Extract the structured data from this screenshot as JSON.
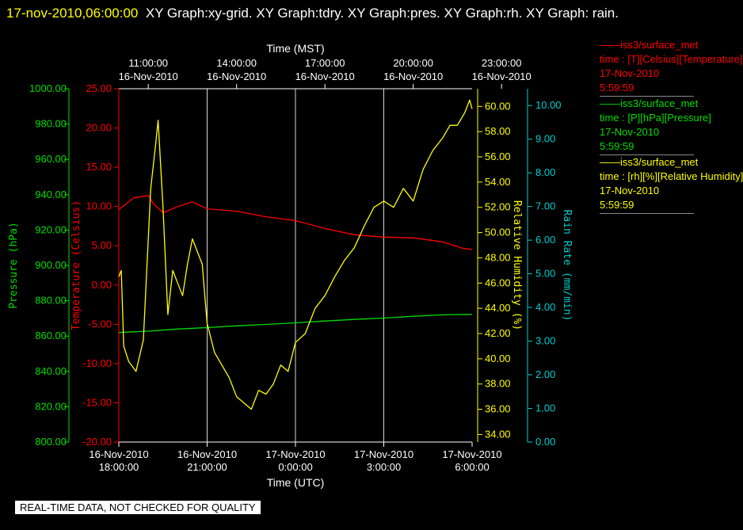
{
  "header": {
    "timestamp": "17-nov-2010,06:00:00",
    "graphs": "XY Graph:xy-grid.  XY Graph:tdry.  XY Graph:pres.  XY Graph:rh.  XY Graph: rain."
  },
  "legend": [
    {
      "series": "iss3/surface_met",
      "field": "time : [T][Celsius][Temperature]",
      "date": "17-Nov-2010",
      "time": "5:59:59",
      "color": "#ff0000"
    },
    {
      "series": "iss3/surface_met",
      "field": "time : [P][hPa][Pressure]",
      "date": "17-Nov-2010",
      "time": "5:59:59",
      "color": "#00dd00"
    },
    {
      "series": "iss3/surface_met",
      "field": "time : [rh][%][Relative Humidity]",
      "date": "17-Nov-2010",
      "time": "5:59:59",
      "color": "#ffff00"
    }
  ],
  "quality_note": "REAL-TIME DATA, NOT CHECKED FOR QUALITY",
  "chart_data": {
    "type": "line",
    "x_top": {
      "label": "Time (MST)",
      "ticks": [
        {
          "time": "11:00:00",
          "date": "16-Nov-2010"
        },
        {
          "time": "14:00:00",
          "date": "16-Nov-2010"
        },
        {
          "time": "17:00:00",
          "date": "16-Nov-2010"
        },
        {
          "time": "20:00:00",
          "date": "16-Nov-2010"
        },
        {
          "time": "23:00:00",
          "date": "16-Nov-2010"
        }
      ]
    },
    "x_bottom": {
      "label": "Time (UTC)",
      "range": [
        "2010-11-16 18:00",
        "2010-11-17 06:00"
      ],
      "ticks": [
        {
          "date": "16-Nov-2010",
          "time": "18:00:00"
        },
        {
          "date": "16-Nov-2010",
          "time": "21:00:00"
        },
        {
          "date": "17-Nov-2010",
          "time": "0:00:00"
        },
        {
          "date": "17-Nov-2010",
          "time": "3:00:00"
        },
        {
          "date": "17-Nov-2010",
          "time": "6:00:00"
        }
      ]
    },
    "grid": "vertical",
    "axes": {
      "pressure": {
        "label": "Pressure (hPa)",
        "color": "#00dd00",
        "ylim": [
          800,
          1000
        ],
        "ticks": [
          "800.00",
          "820.00",
          "840.00",
          "860.00",
          "880.00",
          "900.00",
          "920.00",
          "940.00",
          "960.00",
          "980.00",
          "1000.00"
        ]
      },
      "temperature": {
        "label": "Temperature (Celsius)",
        "color": "#ff0000",
        "ylim": [
          -20,
          25
        ],
        "ticks": [
          "-20.00",
          "-15.00",
          "-10.00",
          "-5.00",
          "0.00",
          "5.00",
          "10.00",
          "15.00",
          "20.00",
          "25.00"
        ]
      },
      "humidity": {
        "label": "Relative Humidity (%)",
        "color": "#ffff00",
        "ylim": [
          33.4,
          61.4
        ],
        "ticks": [
          "34.00",
          "36.00",
          "38.00",
          "40.00",
          "42.00",
          "44.00",
          "46.00",
          "48.00",
          "50.00",
          "52.00",
          "54.00",
          "56.00",
          "58.00",
          "60.00"
        ]
      },
      "rain": {
        "label": "Rain Rate (mm/min)",
        "color": "#00cccc",
        "ylim": [
          0,
          10.5
        ],
        "ticks": [
          "0.00",
          "1.00",
          "2.00",
          "3.00",
          "4.00",
          "5.00",
          "6.00",
          "7.00",
          "8.00",
          "9.00",
          "10.00"
        ]
      }
    },
    "series": [
      {
        "axis": "temperature",
        "color": "#ff0000",
        "x": [
          "2010-11-16 18:00",
          "2010-11-16 18:30",
          "2010-11-16 19:00",
          "2010-11-16 19:10",
          "2010-11-16 19:30",
          "2010-11-16 20:00",
          "2010-11-16 20:30",
          "2010-11-16 21:00",
          "2010-11-16 22:00",
          "2010-11-16 23:00",
          "2010-11-17 00:00",
          "2010-11-17 01:00",
          "2010-11-17 02:00",
          "2010-11-17 03:00",
          "2010-11-17 04:00",
          "2010-11-17 05:00",
          "2010-11-17 05:40",
          "2010-11-17 06:00"
        ],
        "values": [
          9.6,
          11.1,
          11.4,
          10.4,
          9.2,
          10.0,
          10.6,
          9.7,
          9.4,
          8.7,
          8.2,
          7.2,
          6.4,
          6.1,
          6.0,
          5.5,
          4.7,
          4.5
        ]
      },
      {
        "axis": "pressure",
        "color": "#00dd00",
        "x": [
          "2010-11-16 18:00",
          "2010-11-16 19:00",
          "2010-11-16 20:00",
          "2010-11-16 21:00",
          "2010-11-16 22:00",
          "2010-11-16 23:00",
          "2010-11-17 00:00",
          "2010-11-17 01:00",
          "2010-11-17 02:00",
          "2010-11-17 03:00",
          "2010-11-17 04:00",
          "2010-11-17 05:00",
          "2010-11-17 06:00"
        ],
        "values": [
          862.0,
          862.8,
          864.0,
          864.8,
          865.8,
          866.6,
          867.5,
          868.5,
          869.4,
          870.2,
          871.2,
          872.0,
          872.3
        ]
      },
      {
        "axis": "humidity",
        "color": "#ffff00",
        "x": [
          "2010-11-16 18:00",
          "2010-11-16 18:05",
          "2010-11-16 18:10",
          "2010-11-16 18:20",
          "2010-11-16 18:35",
          "2010-11-16 18:50",
          "2010-11-16 19:05",
          "2010-11-16 19:15",
          "2010-11-16 19:20",
          "2010-11-16 19:30",
          "2010-11-16 19:40",
          "2010-11-16 19:50",
          "2010-11-16 20:00",
          "2010-11-16 20:10",
          "2010-11-16 20:20",
          "2010-11-16 20:30",
          "2010-11-16 20:40",
          "2010-11-16 20:50",
          "2010-11-16 21:00",
          "2010-11-16 21:15",
          "2010-11-16 21:30",
          "2010-11-16 21:45",
          "2010-11-16 22:00",
          "2010-11-16 22:15",
          "2010-11-16 22:30",
          "2010-11-16 22:45",
          "2010-11-16 23:00",
          "2010-11-16 23:15",
          "2010-11-16 23:30",
          "2010-11-16 23:45",
          "2010-11-17 00:00",
          "2010-11-17 00:20",
          "2010-11-17 00:40",
          "2010-11-17 01:00",
          "2010-11-17 01:20",
          "2010-11-17 01:40",
          "2010-11-17 02:00",
          "2010-11-17 02:20",
          "2010-11-17 02:40",
          "2010-11-17 03:00",
          "2010-11-17 03:20",
          "2010-11-17 03:40",
          "2010-11-17 04:00",
          "2010-11-17 04:20",
          "2010-11-17 04:40",
          "2010-11-17 05:00",
          "2010-11-17 05:15",
          "2010-11-17 05:30",
          "2010-11-17 05:45",
          "2010-11-17 05:55",
          "2010-11-17 06:00"
        ],
        "values": [
          46.5,
          47.0,
          41.0,
          39.8,
          39.0,
          41.5,
          53.5,
          57.0,
          58.9,
          52.0,
          43.5,
          47.0,
          46.0,
          45.0,
          47.5,
          49.5,
          48.5,
          47.5,
          42.8,
          40.5,
          39.5,
          38.5,
          37.0,
          36.5,
          36.0,
          37.5,
          37.2,
          38.0,
          39.5,
          39.0,
          41.3,
          42.0,
          44.0,
          45.0,
          46.5,
          47.8,
          48.8,
          50.5,
          52.0,
          52.5,
          52.0,
          53.5,
          52.5,
          55.0,
          56.5,
          57.5,
          58.5,
          58.5,
          59.5,
          60.5,
          59.8
        ]
      },
      {
        "axis": "rain",
        "color": "#00cccc",
        "x": [],
        "values": []
      }
    ]
  }
}
